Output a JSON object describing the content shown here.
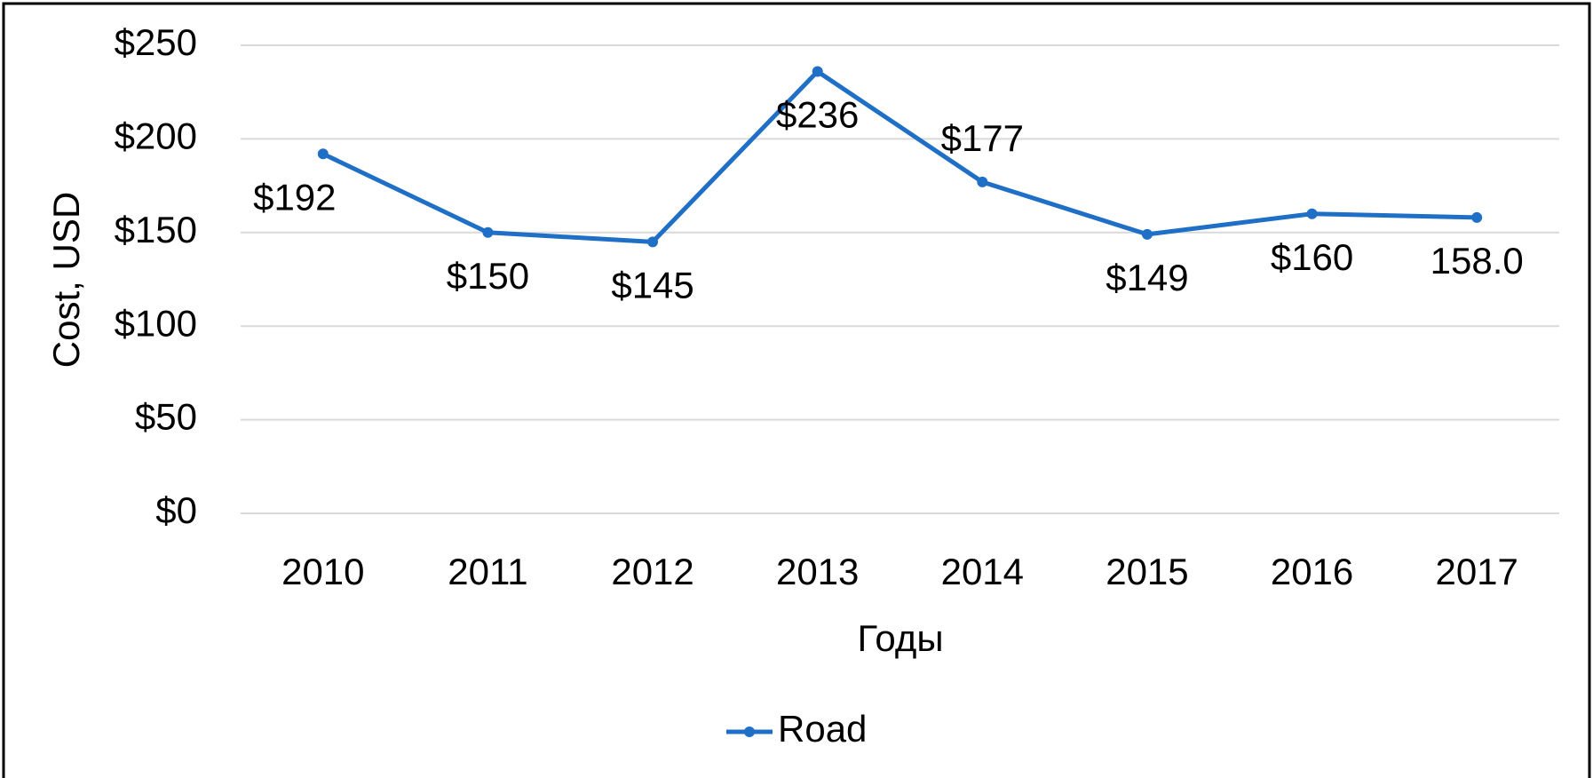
{
  "chart_data": {
    "type": "line",
    "categories": [
      "2010",
      "2011",
      "2012",
      "2013",
      "2014",
      "2015",
      "2016",
      "2017"
    ],
    "series": [
      {
        "name": "Road",
        "color": "#1f6fc6",
        "values": [
          192,
          150,
          145,
          236,
          177,
          149,
          160,
          158
        ],
        "value_labels": [
          "$192",
          "$150",
          "$145",
          "$236",
          "$177",
          "$149",
          "$160",
          "158.0"
        ]
      }
    ],
    "ylim": [
      0,
      250
    ],
    "yticks": [
      {
        "value": 0,
        "label": "$0"
      },
      {
        "value": 50,
        "label": "$50"
      },
      {
        "value": 100,
        "label": "$100"
      },
      {
        "value": 150,
        "label": "$150"
      },
      {
        "value": 200,
        "label": "$200"
      },
      {
        "value": 250,
        "label": "$250"
      }
    ],
    "ylabel": "Cost, USD",
    "xlabel": "Годы",
    "grid": true,
    "legend": "bottom"
  }
}
